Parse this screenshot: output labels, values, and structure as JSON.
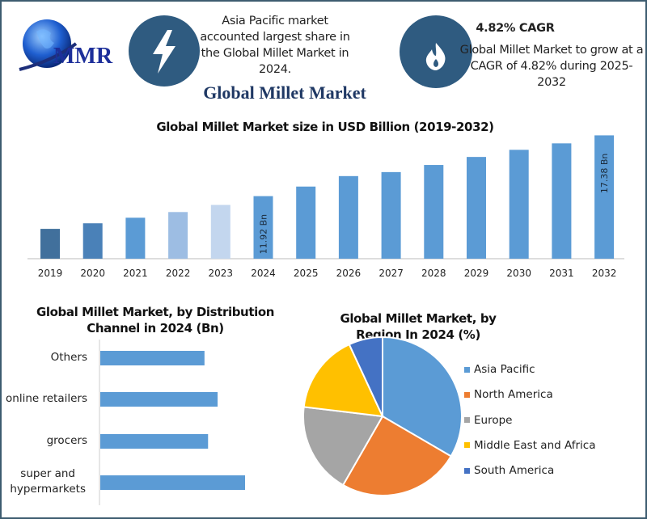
{
  "header": {
    "logo_text": "MMR",
    "highlight_icon": "lightning-bolt-icon",
    "highlight_text": "Asia Pacific market accounted largest share in the Global Millet Market in 2024.",
    "cagr_icon": "flame-icon",
    "cagr_title": "4.82% CAGR",
    "cagr_text": "Global Millet Market to grow at a CAGR of 4.82% during 2025-2032",
    "main_title": "Global Millet Market"
  },
  "colors": {
    "frame": "#3d5c70",
    "icon_circle": "#2f5b80",
    "bar": "#5b9bd5",
    "asia_pacific": "#5b9bd5",
    "north_america": "#ed7d31",
    "europe": "#a5a5a5",
    "mea": "#ffc000",
    "south_america": "#4472c4"
  },
  "chart_data": [
    {
      "type": "bar",
      "title": "Global Millet Market size in USD Billion (2019-2032)",
      "categories": [
        "2019",
        "2020",
        "2021",
        "2022",
        "2023",
        "2024",
        "2025",
        "2026",
        "2027",
        "2028",
        "2029",
        "2030",
        "2031",
        "2032"
      ],
      "values": [
        8.98,
        9.48,
        9.98,
        10.49,
        11.13,
        11.92,
        12.78,
        13.72,
        14.08,
        14.72,
        15.44,
        16.08,
        16.66,
        17.38
      ],
      "bar_colors": [
        "#41709c",
        "#4a81b8",
        "#5b9bd5",
        "#9dbde3",
        "#c3d6ee",
        "#5b9bd5",
        "#5b9bd5",
        "#5b9bd5",
        "#5b9bd5",
        "#5b9bd5",
        "#5b9bd5",
        "#5b9bd5",
        "#5b9bd5",
        "#5b9bd5"
      ],
      "data_labels": {
        "2024": "11.92 Bn",
        "2032": "17.38 Bn"
      },
      "ylim": [
        6.3,
        18.5
      ],
      "grid": false
    },
    {
      "type": "bar",
      "orientation": "horizontal",
      "title": "Global Millet Market, by Distribution Channel in 2024 (Bn)",
      "categories": [
        "Others",
        "online retailers",
        "grocers",
        "super and hypermarkets"
      ],
      "values": [
        2.62,
        2.95,
        2.71,
        3.64
      ],
      "grid": false
    },
    {
      "type": "pie",
      "title": "Global Millet Market, by Region In 2024 (%)",
      "labels": [
        "Asia Pacific",
        "North America",
        "Europe",
        "Middle East and Africa",
        "South America"
      ],
      "values": [
        33.4,
        24.9,
        18.6,
        16.2,
        6.9
      ],
      "colors": [
        "#5b9bd5",
        "#ed7d31",
        "#a5a5a5",
        "#ffc000",
        "#4472c4"
      ],
      "legend": "right"
    }
  ]
}
